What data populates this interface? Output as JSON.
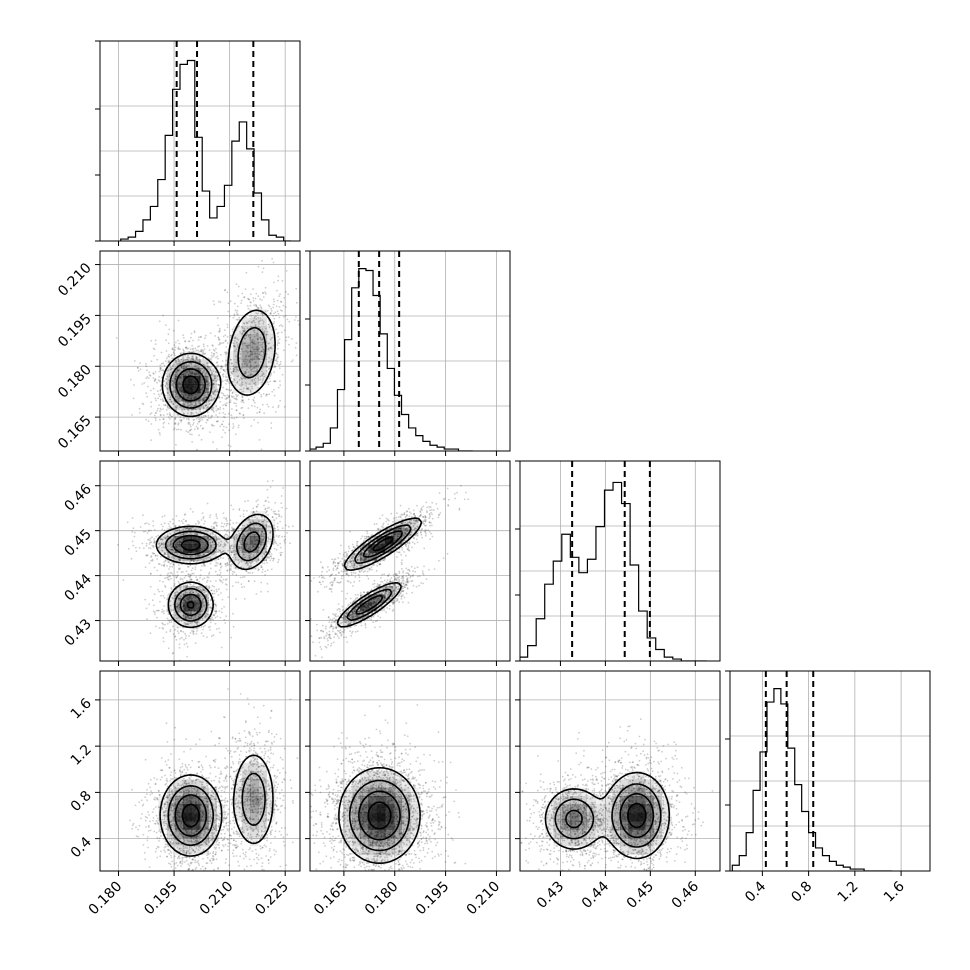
{
  "chart_data": {
    "type": "corner",
    "grid": true,
    "parameters": [
      {
        "range": [
          0.175,
          0.229
        ],
        "ticks": [
          "0.180",
          "0.195",
          "0.210",
          "0.225"
        ],
        "tick_values": [
          0.18,
          0.195,
          0.21,
          0.225
        ]
      },
      {
        "range": [
          0.155,
          0.214
        ],
        "ticks": [
          "0.165",
          "0.180",
          "0.195",
          "0.210"
        ],
        "tick_values": [
          0.165,
          0.18,
          0.195,
          0.21
        ]
      },
      {
        "range": [
          0.421,
          0.4655
        ],
        "ticks": [
          "0.43",
          "0.44",
          "0.45",
          "0.46"
        ],
        "tick_values": [
          0.43,
          0.44,
          0.45,
          0.46
        ]
      },
      {
        "range": [
          0.12,
          1.85
        ],
        "ticks": [
          "0.4",
          "0.8",
          "1.2",
          "1.6"
        ],
        "tick_values": [
          0.4,
          0.8,
          1.2,
          1.6
        ]
      }
    ],
    "diagonal": [
      {
        "quantiles": [
          0.1957,
          0.2012,
          0.2164
        ],
        "bin_edges": [
          0.1806,
          0.1826,
          0.1846,
          0.1866,
          0.1886,
          0.1906,
          0.1926,
          0.1946,
          0.1966,
          0.1986,
          0.2006,
          0.2026,
          0.2046,
          0.2066,
          0.2086,
          0.2106,
          0.2126,
          0.2146,
          0.2166,
          0.2186,
          0.2206,
          0.2226,
          0.2246,
          0.2266
        ],
        "counts": [
          0.01,
          0.02,
          0.05,
          0.11,
          0.18,
          0.32,
          0.55,
          0.79,
          0.92,
          0.94,
          0.54,
          0.26,
          0.12,
          0.18,
          0.29,
          0.52,
          0.62,
          0.48,
          0.25,
          0.11,
          0.03,
          0.02,
          0.0
        ]
      },
      {
        "quantiles": [
          0.1694,
          0.1754,
          0.1813
        ],
        "bin_edges": [
          0.1547,
          0.1568,
          0.1589,
          0.161,
          0.1631,
          0.1652,
          0.1673,
          0.1694,
          0.1715,
          0.1736,
          0.1757,
          0.1778,
          0.1799,
          0.182,
          0.1841,
          0.1862,
          0.1883,
          0.1904,
          0.1925,
          0.1946,
          0.1967,
          0.1988,
          0.2009,
          0.203
        ],
        "counts": [
          0.01,
          0.02,
          0.04,
          0.12,
          0.32,
          0.58,
          0.85,
          0.95,
          0.94,
          0.81,
          0.61,
          0.43,
          0.29,
          0.19,
          0.12,
          0.08,
          0.05,
          0.03,
          0.02,
          0.01,
          0.01,
          0.0,
          0.0
        ]
      },
      {
        "quantiles": [
          0.4326,
          0.4443,
          0.4499
        ],
        "bin_edges": [
          0.4208,
          0.4227,
          0.4246,
          0.4265,
          0.4284,
          0.4303,
          0.4322,
          0.4341,
          0.436,
          0.4379,
          0.4398,
          0.4417,
          0.4436,
          0.4455,
          0.4474,
          0.4493,
          0.4512,
          0.4531,
          0.455,
          0.4569,
          0.4588,
          0.4607,
          0.4626
        ],
        "counts": [
          0.02,
          0.08,
          0.22,
          0.4,
          0.52,
          0.66,
          0.54,
          0.46,
          0.53,
          0.7,
          0.89,
          0.93,
          0.82,
          0.5,
          0.26,
          0.12,
          0.06,
          0.02,
          0.01,
          0.0,
          0.0,
          0.0
        ]
      },
      {
        "quantiles": [
          0.43,
          0.61,
          0.84
        ],
        "bin_edges": [
          0.14,
          0.2,
          0.26,
          0.32,
          0.38,
          0.44,
          0.5,
          0.56,
          0.62,
          0.68,
          0.74,
          0.8,
          0.86,
          0.92,
          0.98,
          1.04,
          1.1,
          1.16,
          1.22,
          1.28,
          1.34,
          1.4,
          1.46,
          1.52
        ],
        "counts": [
          0.03,
          0.08,
          0.2,
          0.42,
          0.62,
          0.88,
          0.95,
          0.87,
          0.64,
          0.45,
          0.31,
          0.2,
          0.12,
          0.08,
          0.05,
          0.03,
          0.02,
          0.01,
          0.01,
          0.0,
          0.0,
          0.0,
          0.0
        ]
      }
    ],
    "pairs": [
      {
        "x_param": 0,
        "y_param": 1,
        "modes": [
          {
            "x": 0.1995,
            "y": 0.1745,
            "sx": 0.0037,
            "sy": 0.0045,
            "rho": 0.0,
            "w": 0.65
          },
          {
            "x": 0.216,
            "y": 0.184,
            "sx": 0.0036,
            "sy": 0.0072,
            "rho": 0.2,
            "w": 0.35
          }
        ]
      },
      {
        "x_param": 0,
        "y_param": 2,
        "modes": [
          {
            "x": 0.1995,
            "y": 0.4468,
            "sx": 0.0045,
            "sy": 0.002,
            "rho": 0.0,
            "w": 0.38
          },
          {
            "x": 0.1995,
            "y": 0.4335,
            "sx": 0.003,
            "sy": 0.0025,
            "rho": 0.0,
            "w": 0.34
          },
          {
            "x": 0.216,
            "y": 0.4475,
            "sx": 0.003,
            "sy": 0.0032,
            "rho": 0.3,
            "w": 0.28
          }
        ]
      },
      {
        "x_param": 0,
        "y_param": 3,
        "modes": [
          {
            "x": 0.1995,
            "y": 0.6,
            "sx": 0.004,
            "sy": 0.17,
            "rho": 0.0,
            "w": 0.65
          },
          {
            "x": 0.2165,
            "y": 0.74,
            "sx": 0.003,
            "sy": 0.22,
            "rho": 0.0,
            "w": 0.35
          }
        ]
      },
      {
        "x_param": 1,
        "y_param": 2,
        "modes": [
          {
            "x": 0.1765,
            "y": 0.447,
            "sx": 0.0055,
            "sy": 0.0028,
            "rho": 0.85,
            "w": 0.55
          },
          {
            "x": 0.1725,
            "y": 0.4335,
            "sx": 0.0048,
            "sy": 0.0025,
            "rho": 0.85,
            "w": 0.45
          }
        ]
      },
      {
        "x_param": 1,
        "y_param": 3,
        "modes": [
          {
            "x": 0.1755,
            "y": 0.6,
            "sx": 0.0058,
            "sy": 0.2,
            "rho": 0.0,
            "w": 1.0
          }
        ]
      },
      {
        "x_param": 2,
        "y_param": 3,
        "modes": [
          {
            "x": 0.433,
            "y": 0.57,
            "sx": 0.0034,
            "sy": 0.14,
            "rho": 0.0,
            "w": 0.4
          },
          {
            "x": 0.447,
            "y": 0.6,
            "sx": 0.0035,
            "sy": 0.18,
            "rho": 0.0,
            "w": 0.6
          }
        ]
      }
    ]
  }
}
